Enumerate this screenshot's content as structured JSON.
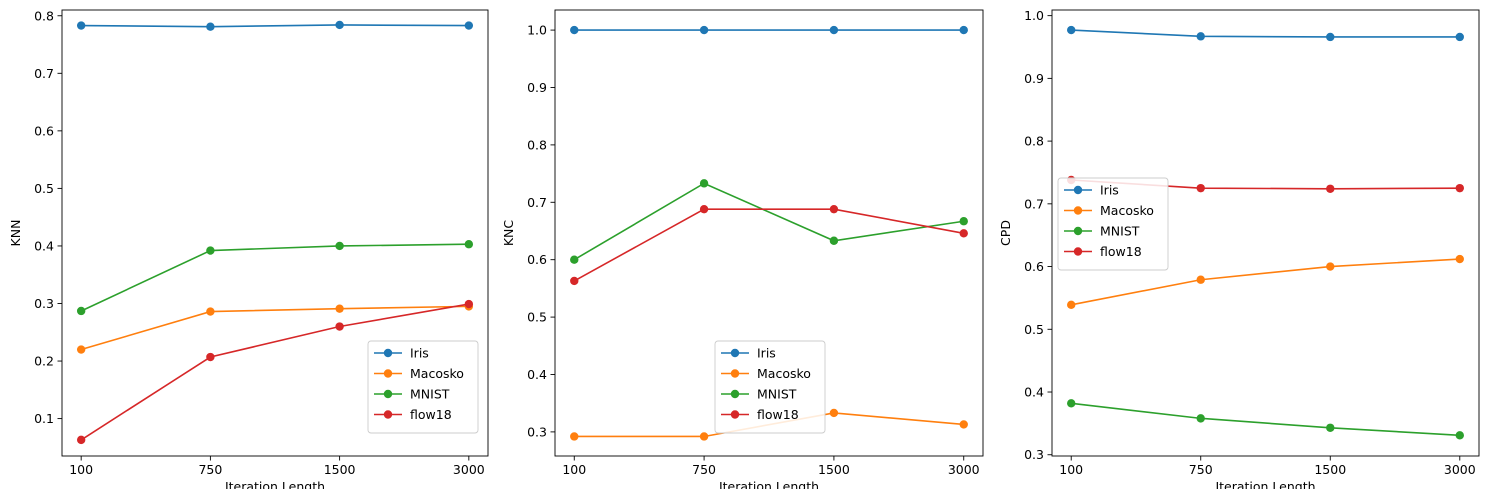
{
  "chart_data": [
    {
      "type": "line",
      "categories": [
        "100",
        "750",
        "1500",
        "3000"
      ],
      "xlabel": "Iteration Length",
      "ylabel": "KNN",
      "ylim": [
        0.035,
        0.81
      ],
      "yticks": [
        0.1,
        0.2,
        0.3,
        0.4,
        0.5,
        0.6,
        0.7,
        0.8
      ],
      "legend_position": "lower-right",
      "grid": false,
      "series": [
        {
          "name": "Iris",
          "color": "#1f77b4",
          "values": [
            0.783,
            0.781,
            0.784,
            0.783
          ]
        },
        {
          "name": "Macosko",
          "color": "#ff7f0e",
          "values": [
            0.22,
            0.286,
            0.291,
            0.295
          ]
        },
        {
          "name": "MNIST",
          "color": "#2ca02c",
          "values": [
            0.287,
            0.392,
            0.4,
            0.403
          ]
        },
        {
          "name": "flow18",
          "color": "#d62728",
          "values": [
            0.063,
            0.207,
            0.26,
            0.299
          ]
        }
      ]
    },
    {
      "type": "line",
      "categories": [
        "100",
        "750",
        "1500",
        "3000"
      ],
      "xlabel": "Iteration Length",
      "ylabel": "KNC",
      "ylim": [
        0.258,
        1.035
      ],
      "yticks": [
        0.3,
        0.4,
        0.5,
        0.6,
        0.7,
        0.8,
        0.9,
        1.0
      ],
      "legend_position": "lower-center",
      "grid": false,
      "series": [
        {
          "name": "Iris",
          "color": "#1f77b4",
          "values": [
            1.0,
            1.0,
            1.0,
            1.0
          ]
        },
        {
          "name": "Macosko",
          "color": "#ff7f0e",
          "values": [
            0.292,
            0.292,
            0.333,
            0.313
          ]
        },
        {
          "name": "MNIST",
          "color": "#2ca02c",
          "values": [
            0.6,
            0.733,
            0.633,
            0.667
          ]
        },
        {
          "name": "flow18",
          "color": "#d62728",
          "values": [
            0.563,
            0.688,
            0.688,
            0.646
          ]
        }
      ]
    },
    {
      "type": "line",
      "categories": [
        "100",
        "750",
        "1500",
        "3000"
      ],
      "xlabel": "Iteration Length",
      "ylabel": "CPD",
      "ylim": [
        0.298,
        1.009
      ],
      "yticks": [
        0.3,
        0.4,
        0.5,
        0.6,
        0.7,
        0.8,
        0.9,
        1.0
      ],
      "legend_position": "center-left",
      "grid": false,
      "series": [
        {
          "name": "Iris",
          "color": "#1f77b4",
          "values": [
            0.977,
            0.967,
            0.966,
            0.966
          ]
        },
        {
          "name": "Macosko",
          "color": "#ff7f0e",
          "values": [
            0.539,
            0.579,
            0.6,
            0.612
          ]
        },
        {
          "name": "MNIST",
          "color": "#2ca02c",
          "values": [
            0.382,
            0.358,
            0.343,
            0.331
          ]
        },
        {
          "name": "flow18",
          "color": "#d62728",
          "values": [
            0.738,
            0.725,
            0.724,
            0.725
          ]
        }
      ]
    }
  ]
}
